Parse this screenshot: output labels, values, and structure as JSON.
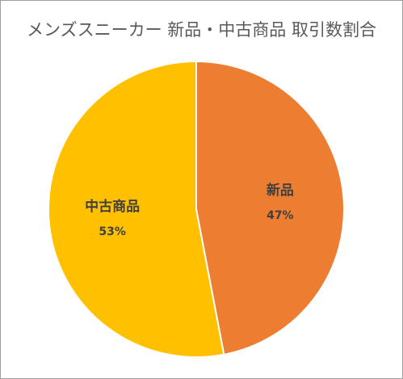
{
  "chart_data": {
    "type": "pie",
    "title": "メンズスニーカー 新品・中古商品 取引数割合",
    "categories": [
      "新品",
      "中古商品"
    ],
    "values": [
      47,
      53
    ],
    "value_labels": [
      "47%",
      "53%"
    ],
    "colors": [
      "#ED7D31",
      "#FFC000"
    ],
    "start": "12 o'clock, clockwise",
    "legend": "none (data labels inside slices)"
  }
}
